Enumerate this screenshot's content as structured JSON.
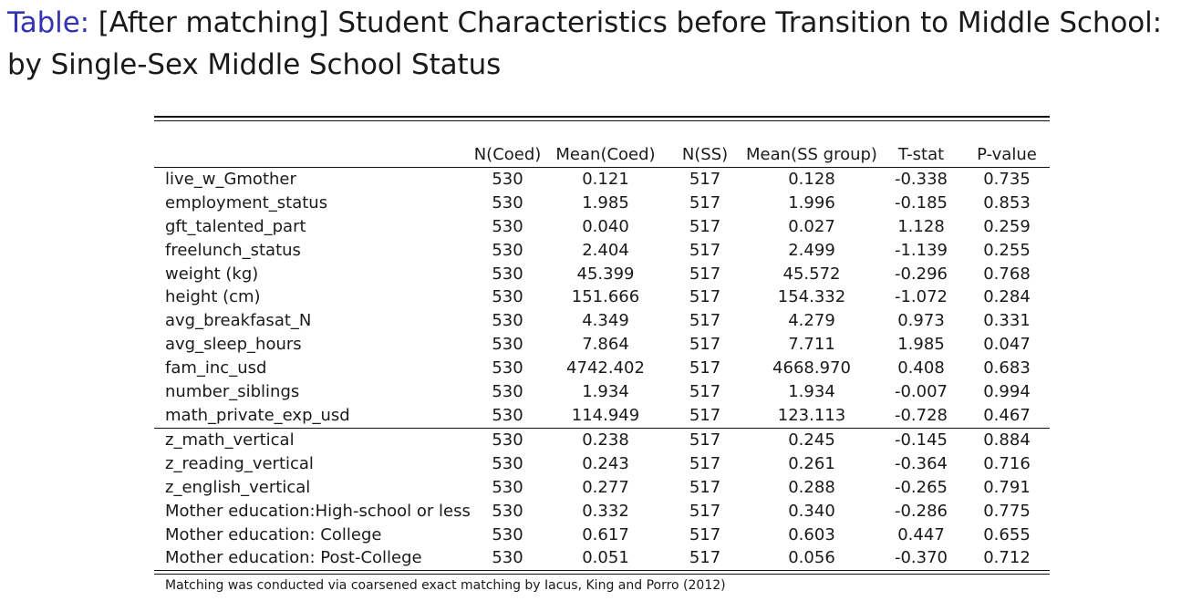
{
  "title": {
    "prefix": "Table:",
    "text": "[After matching] Student Characteristics before Transition to Middle School: by Single-Sex Middle School Status"
  },
  "table": {
    "columns": [
      "",
      "N(Coed)",
      "Mean(Coed)",
      "N(SS)",
      "Mean(SS group)",
      "T-stat",
      "P-value"
    ],
    "rows": [
      [
        "live_w_Gmother",
        "530",
        "0.121",
        "517",
        "0.128",
        "-0.338",
        "0.735"
      ],
      [
        "employment_status",
        "530",
        "1.985",
        "517",
        "1.996",
        "-0.185",
        "0.853"
      ],
      [
        "gft_talented_part",
        "530",
        "0.040",
        "517",
        "0.027",
        "1.128",
        "0.259"
      ],
      [
        "freelunch_status",
        "530",
        "2.404",
        "517",
        "2.499",
        "-1.139",
        "0.255"
      ],
      [
        "weight (kg)",
        "530",
        "45.399",
        "517",
        "45.572",
        "-0.296",
        "0.768"
      ],
      [
        "height (cm)",
        "530",
        "151.666",
        "517",
        "154.332",
        "-1.072",
        "0.284"
      ],
      [
        "avg_breakfasat_N",
        "530",
        "4.349",
        "517",
        "4.279",
        "0.973",
        "0.331"
      ],
      [
        "avg_sleep_hours",
        "530",
        "7.864",
        "517",
        "7.711",
        "1.985",
        "0.047"
      ],
      [
        "fam_inc_usd",
        "530",
        "4742.402",
        "517",
        "4668.970",
        "0.408",
        "0.683"
      ],
      [
        "number_siblings",
        "530",
        "1.934",
        "517",
        "1.934",
        "-0.007",
        "0.994"
      ],
      [
        "math_private_exp_usd",
        "530",
        "114.949",
        "517",
        "123.113",
        "-0.728",
        "0.467"
      ],
      [
        "z_math_vertical",
        "530",
        "0.238",
        "517",
        "0.245",
        "-0.145",
        "0.884"
      ],
      [
        "z_reading_vertical",
        "530",
        "0.243",
        "517",
        "0.261",
        "-0.364",
        "0.716"
      ],
      [
        "z_english_vertical",
        "530",
        "0.277",
        "517",
        "0.288",
        "-0.265",
        "0.791"
      ],
      [
        "Mother education:High-school or less",
        "530",
        "0.332",
        "517",
        "0.340",
        "-0.286",
        "0.775"
      ],
      [
        "Mother education:  College",
        "530",
        "0.617",
        "517",
        "0.603",
        "0.447",
        "0.655"
      ],
      [
        "Mother education:  Post-College",
        "530",
        "0.051",
        "517",
        "0.056",
        "-0.370",
        "0.712"
      ]
    ],
    "note": "Matching was conducted via coarsened exact matching by Iacus, King and Porro (2012)"
  }
}
